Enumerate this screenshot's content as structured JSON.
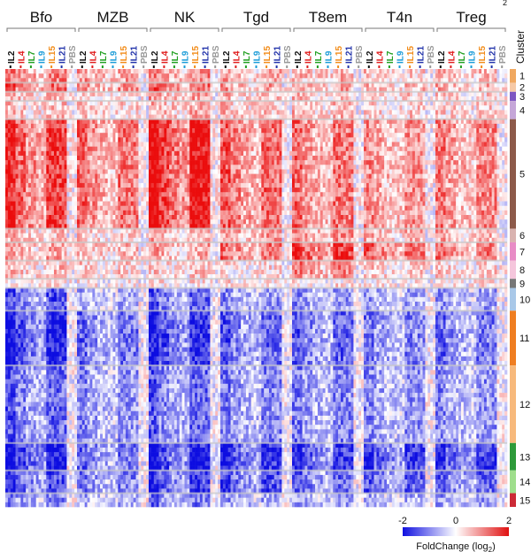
{
  "chart_data": {
    "type": "heatmap",
    "title": "",
    "groups": [
      "Bfo",
      "MZB",
      "NK",
      "Tgd",
      "T8em",
      "T4n",
      "Treg"
    ],
    "treatments": [
      "IL2",
      "IL4",
      "IL7",
      "IL9",
      "IL15",
      "IL21",
      "PBS"
    ],
    "treatment_colors": {
      "IL2": "#111111",
      "IL4": "#e02020",
      "IL7": "#22a022",
      "IL9": "#1a9bd7",
      "IL15": "#f28c1a",
      "IL21": "#2233aa",
      "PBS": "#999999"
    },
    "row_axis_title": "Cluster",
    "clusters": [
      {
        "id": "1",
        "color": "#f0a860",
        "span": [
          0,
          3
        ]
      },
      {
        "id": "2",
        "color": "#f6c9a6",
        "span": [
          3,
          5
        ]
      },
      {
        "id": "3",
        "color": "#7e57c2",
        "span": [
          5,
          7
        ]
      },
      {
        "id": "4",
        "color": "#c5a6d8",
        "span": [
          7,
          11
        ]
      },
      {
        "id": "5",
        "color": "#8d5a4a",
        "span": [
          11,
          35
        ]
      },
      {
        "id": "6",
        "color": "#d9b3b0",
        "span": [
          35,
          38
        ]
      },
      {
        "id": "7",
        "color": "#e88cc6",
        "span": [
          38,
          42
        ]
      },
      {
        "id": "8",
        "color": "#f5c6dc",
        "span": [
          42,
          46
        ]
      },
      {
        "id": "9",
        "color": "#777777",
        "span": [
          46,
          48
        ]
      },
      {
        "id": "10",
        "color": "#a9c8e8",
        "span": [
          48,
          53
        ]
      },
      {
        "id": "11",
        "color": "#ef7e22",
        "span": [
          53,
          65
        ]
      },
      {
        "id": "12",
        "color": "#f7b97c",
        "span": [
          65,
          82
        ]
      },
      {
        "id": "13",
        "color": "#2e9a3a",
        "span": [
          82,
          88
        ]
      },
      {
        "id": "14",
        "color": "#9fde8c",
        "span": [
          88,
          93
        ]
      },
      {
        "id": "15",
        "color": "#cc2a36",
        "span": [
          93,
          96
        ]
      }
    ],
    "cluster_profiles": {
      "Bfo": [
        0.9,
        1.0,
        0.5,
        0.4,
        1.3,
        0.4,
        0.6,
        0.4,
        0.2,
        -1.1,
        -1.5,
        -1.0,
        -1.6,
        -1.2,
        -0.8
      ],
      "MZB": [
        0.6,
        0.7,
        0.3,
        0.3,
        0.9,
        0.3,
        0.4,
        0.3,
        0.1,
        -0.5,
        -0.9,
        -0.7,
        -0.9,
        -0.8,
        -0.5
      ],
      "NK": [
        0.8,
        1.0,
        0.6,
        0.5,
        1.6,
        0.5,
        0.6,
        0.3,
        0.2,
        -1.0,
        -1.4,
        -1.0,
        -1.5,
        -1.3,
        -0.9
      ],
      "Tgd": [
        0.5,
        0.6,
        0.4,
        0.4,
        1.0,
        0.6,
        0.9,
        0.2,
        0.2,
        -0.7,
        -1.0,
        -0.8,
        -1.4,
        -1.1,
        -0.6
      ],
      "T8em": [
        0.5,
        0.6,
        0.4,
        0.4,
        0.9,
        0.7,
        1.3,
        0.8,
        0.2,
        -0.7,
        -1.0,
        -0.8,
        -1.3,
        -1.0,
        -0.6
      ],
      "T4n": [
        0.3,
        0.4,
        0.3,
        0.3,
        0.7,
        0.5,
        1.0,
        0.3,
        0.1,
        -0.6,
        -0.8,
        -0.7,
        -1.3,
        -1.0,
        -0.5
      ],
      "Treg": [
        0.4,
        0.5,
        0.3,
        0.3,
        0.8,
        0.5,
        0.9,
        0.3,
        0.1,
        -0.6,
        -0.9,
        -0.7,
        -1.3,
        -1.0,
        -0.6
      ]
    },
    "treatment_strength": {
      "IL2": 1.0,
      "IL4": 0.7,
      "IL7": 0.5,
      "IL9": 0.4,
      "IL15": 0.9,
      "IL21": 0.85,
      "PBS": 0.05
    },
    "colorbar": {
      "label": "FoldChange (log2)",
      "label_main": "FoldChange (log",
      "label_sub": "2",
      "label_end": ")",
      "ticks": [
        "-2",
        "0",
        "2"
      ],
      "range": [
        -2,
        2
      ],
      "colors": [
        "#1010e0",
        "#ffffff",
        "#e01010"
      ]
    },
    "top_right_label_fragment": "2"
  }
}
